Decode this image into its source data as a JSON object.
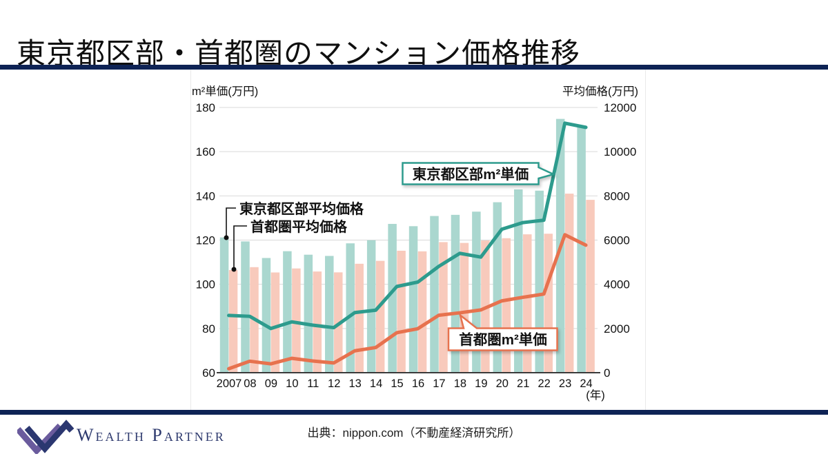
{
  "header": {
    "title": "東京都区部・首都圏のマンション価格推移"
  },
  "footer": {
    "brand": "Wealth Partner",
    "source": "出典：nippon.com（不動産経済研究所）"
  },
  "colors": {
    "navy_rule": "#0e2355",
    "bar_tokyo23": "#aad7cf",
    "bar_shutoken": "#f8cabc",
    "line_tokyo23": "#2d9b8d",
    "line_shutoken": "#e7724e",
    "gridline": "#d9d9d9",
    "axis": "#3a3a3a",
    "logo_purple": "#6a5b9d",
    "logo_navy": "#2b3770"
  },
  "chart_data": {
    "type": "bar",
    "subtype": "combo-bar-line-dual-axis",
    "title": "",
    "categories": [
      "2007",
      "08",
      "09",
      "10",
      "11",
      "12",
      "13",
      "14",
      "15",
      "16",
      "17",
      "18",
      "19",
      "20",
      "21",
      "22",
      "23",
      "24"
    ],
    "x_unit_label": "(年)",
    "grid": true,
    "legend_position": "in-chart-annotations",
    "left_axis": {
      "title": "m²単価(万円)",
      "min": 60,
      "max": 180,
      "ticks": [
        180,
        160,
        140,
        120,
        100,
        80,
        60
      ]
    },
    "right_axis": {
      "title": "平均価格(万円)",
      "min": 0,
      "max": 12000,
      "ticks": [
        12000,
        10000,
        8000,
        6000,
        4000,
        2000,
        0
      ]
    },
    "bar_series": [
      {
        "name": "東京都区部平均価格",
        "axis": "right",
        "color": "#aad7cf",
        "values": [
          6120,
          5940,
          5190,
          5497,
          5339,
          5283,
          5853,
          5994,
          6732,
          6629,
          7089,
          7142,
          7286,
          7712,
          8293,
          8236,
          11483,
          11181
        ]
      },
      {
        "name": "首都圏平均価格",
        "axis": "right",
        "color": "#f8cabc",
        "values": [
          4644,
          4775,
          4535,
          4716,
          4578,
          4540,
          4929,
          5060,
          5518,
          5490,
          5908,
          5871,
          5980,
          6084,
          6260,
          6288,
          8101,
          7820
        ]
      }
    ],
    "line_series": [
      {
        "name": "東京都区部m²単価",
        "axis": "left",
        "color": "#2d9b8d",
        "values": [
          85.9,
          85.5,
          80.0,
          83.0,
          81.5,
          80.4,
          87.2,
          88.3,
          99.0,
          101.0,
          108.1,
          114.0,
          112.3,
          124.9,
          127.9,
          129.0,
          172.9,
          171.0
        ]
      },
      {
        "name": "首都圏m²単価",
        "axis": "left",
        "color": "#e7724e",
        "values": [
          61.8,
          65.2,
          64.0,
          66.5,
          65.3,
          64.4,
          69.9,
          71.4,
          78.1,
          79.9,
          86.0,
          87.1,
          88.4,
          92.5,
          94.1,
          95.6,
          122.4,
          117.7
        ]
      }
    ],
    "annotations": {
      "bar_label_tokyo": "東京都区部平均価格",
      "bar_label_shutoken": "首都圏平均価格",
      "line_callout_tokyo": "東京都区部m²単価",
      "line_callout_shutoken": "首都圏m²単価"
    }
  }
}
